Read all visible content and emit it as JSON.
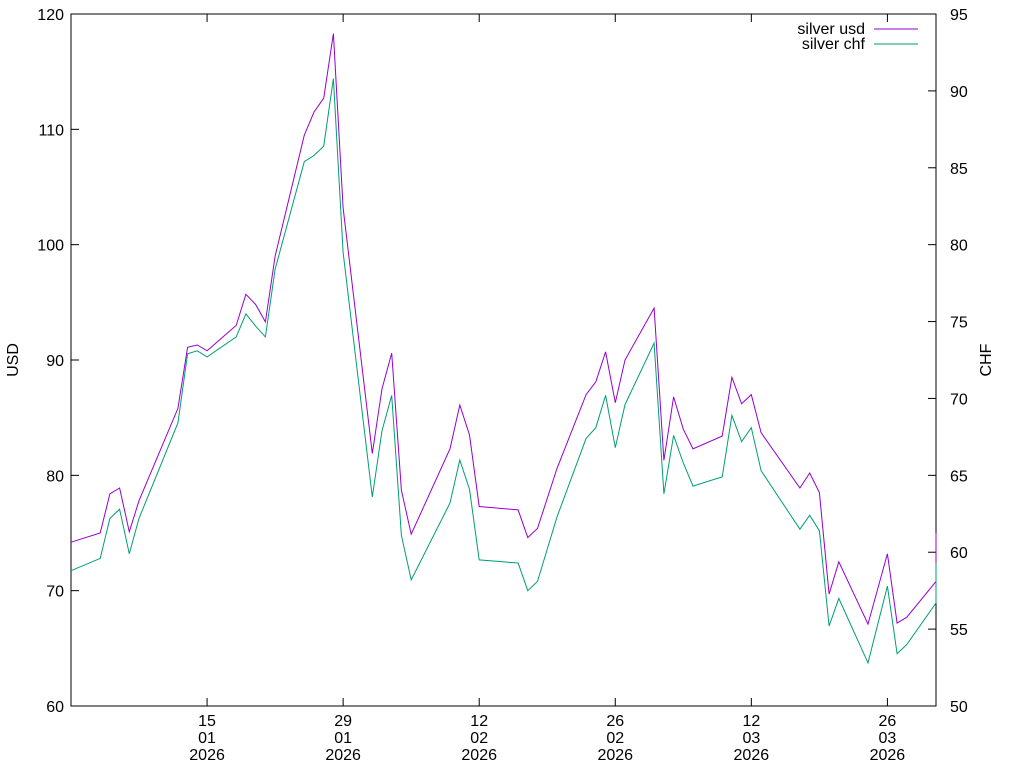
{
  "chart_data": {
    "type": "line",
    "title": "",
    "xlabel": "",
    "ylabel": "USD",
    "y2label": "CHF",
    "ylim": [
      60,
      120
    ],
    "y2lim": [
      50,
      95
    ],
    "xlim": [
      "2026-01-01",
      "2026-03-31"
    ],
    "yticks": [
      60,
      70,
      80,
      90,
      100,
      110,
      120
    ],
    "y2ticks": [
      50,
      55,
      60,
      65,
      70,
      75,
      80,
      85,
      90,
      95
    ],
    "xticks": [
      {
        "date": "2026-01-15",
        "lines": [
          "15",
          "01",
          "2026"
        ]
      },
      {
        "date": "2026-01-29",
        "lines": [
          "29",
          "01",
          "2026"
        ]
      },
      {
        "date": "2026-02-12",
        "lines": [
          "12",
          "02",
          "2026"
        ]
      },
      {
        "date": "2026-02-26",
        "lines": [
          "26",
          "02",
          "2026"
        ]
      },
      {
        "date": "2026-03-12",
        "lines": [
          "12",
          "03",
          "2026"
        ]
      },
      {
        "date": "2026-03-26",
        "lines": [
          "26",
          "03",
          "2026"
        ]
      }
    ],
    "grid": false,
    "legend": "top-right",
    "series": [
      {
        "name": "silver usd",
        "axis": "left",
        "color": "#9400d3",
        "points": [
          [
            "2026-01-01",
            74.2
          ],
          [
            "2026-01-04",
            75.0
          ],
          [
            "2026-01-05",
            78.4
          ],
          [
            "2026-01-06",
            78.9
          ],
          [
            "2026-01-07",
            75.1
          ],
          [
            "2026-01-08",
            77.8
          ],
          [
            "2026-01-12",
            85.8
          ],
          [
            "2026-01-13",
            91.1
          ],
          [
            "2026-01-14",
            91.3
          ],
          [
            "2026-01-15",
            90.8
          ],
          [
            "2026-01-18",
            93.0
          ],
          [
            "2026-01-19",
            95.7
          ],
          [
            "2026-01-20",
            94.8
          ],
          [
            "2026-01-21",
            93.3
          ],
          [
            "2026-01-22",
            99.0
          ],
          [
            "2026-01-25",
            109.5
          ],
          [
            "2026-01-26",
            111.5
          ],
          [
            "2026-01-27",
            112.7
          ],
          [
            "2026-01-28",
            118.3
          ],
          [
            "2026-01-29",
            103.2
          ],
          [
            "2026-02-01",
            81.9
          ],
          [
            "2026-02-02",
            87.5
          ],
          [
            "2026-02-03",
            90.6
          ],
          [
            "2026-02-04",
            78.7
          ],
          [
            "2026-02-05",
            74.9
          ],
          [
            "2026-02-09",
            82.3
          ],
          [
            "2026-02-10",
            86.1
          ],
          [
            "2026-02-11",
            83.5
          ],
          [
            "2026-02-12",
            77.3
          ],
          [
            "2026-02-16",
            77.0
          ],
          [
            "2026-02-17",
            74.6
          ],
          [
            "2026-02-18",
            75.4
          ],
          [
            "2026-02-20",
            80.6
          ],
          [
            "2026-02-23",
            87.0
          ],
          [
            "2026-02-24",
            88.1
          ],
          [
            "2026-02-25",
            90.7
          ],
          [
            "2026-02-26",
            86.3
          ],
          [
            "2026-02-27",
            90.0
          ],
          [
            "2026-03-02",
            94.5
          ],
          [
            "2026-03-03",
            81.3
          ],
          [
            "2026-03-04",
            86.8
          ],
          [
            "2026-03-05",
            84.0
          ],
          [
            "2026-03-06",
            82.3
          ],
          [
            "2026-03-09",
            83.4
          ],
          [
            "2026-03-10",
            88.5
          ],
          [
            "2026-03-11",
            86.2
          ],
          [
            "2026-03-12",
            87.0
          ],
          [
            "2026-03-13",
            83.7
          ],
          [
            "2026-03-17",
            78.9
          ],
          [
            "2026-03-18",
            80.2
          ],
          [
            "2026-03-19",
            78.5
          ],
          [
            "2026-03-20",
            69.7
          ],
          [
            "2026-03-21",
            72.5
          ],
          [
            "2026-03-24",
            67.1
          ],
          [
            "2026-03-26",
            73.2
          ],
          [
            "2026-03-27",
            67.2
          ],
          [
            "2026-03-28",
            67.7
          ],
          [
            "2026-03-31",
            70.8
          ],
          [
            "2026-04-01",
            72.7
          ],
          [
            "2026-04-02",
            75.0
          ],
          [
            "2026-04-03",
            70.3
          ]
        ]
      },
      {
        "name": "silver chf",
        "axis": "right",
        "color": "#009e73",
        "points": [
          [
            "2026-01-01",
            58.8
          ],
          [
            "2026-01-04",
            59.6
          ],
          [
            "2026-01-05",
            62.2
          ],
          [
            "2026-01-06",
            62.8
          ],
          [
            "2026-01-07",
            59.9
          ],
          [
            "2026-01-08",
            62.2
          ],
          [
            "2026-01-12",
            68.4
          ],
          [
            "2026-01-13",
            72.9
          ],
          [
            "2026-01-14",
            73.1
          ],
          [
            "2026-01-15",
            72.7
          ],
          [
            "2026-01-18",
            74.0
          ],
          [
            "2026-01-19",
            75.5
          ],
          [
            "2026-01-20",
            74.7
          ],
          [
            "2026-01-21",
            74.0
          ],
          [
            "2026-01-22",
            78.4
          ],
          [
            "2026-01-25",
            85.4
          ],
          [
            "2026-01-26",
            85.8
          ],
          [
            "2026-01-27",
            86.4
          ],
          [
            "2026-01-28",
            90.8
          ],
          [
            "2026-01-29",
            79.5
          ],
          [
            "2026-02-01",
            63.6
          ],
          [
            "2026-02-02",
            67.9
          ],
          [
            "2026-02-03",
            70.2
          ],
          [
            "2026-02-04",
            61.1
          ],
          [
            "2026-02-05",
            58.2
          ],
          [
            "2026-02-09",
            63.2
          ],
          [
            "2026-02-10",
            66.0
          ],
          [
            "2026-02-11",
            64.1
          ],
          [
            "2026-02-12",
            59.5
          ],
          [
            "2026-02-16",
            59.3
          ],
          [
            "2026-02-17",
            57.5
          ],
          [
            "2026-02-18",
            58.1
          ],
          [
            "2026-02-20",
            62.3
          ],
          [
            "2026-02-23",
            67.4
          ],
          [
            "2026-02-24",
            68.1
          ],
          [
            "2026-02-25",
            70.2
          ],
          [
            "2026-02-26",
            66.8
          ],
          [
            "2026-02-27",
            69.6
          ],
          [
            "2026-03-02",
            73.6
          ],
          [
            "2026-03-03",
            63.8
          ],
          [
            "2026-03-04",
            67.6
          ],
          [
            "2026-03-05",
            65.8
          ],
          [
            "2026-03-06",
            64.3
          ],
          [
            "2026-03-09",
            64.9
          ],
          [
            "2026-03-10",
            68.9
          ],
          [
            "2026-03-11",
            67.2
          ],
          [
            "2026-03-12",
            68.1
          ],
          [
            "2026-03-13",
            65.3
          ],
          [
            "2026-03-17",
            61.5
          ],
          [
            "2026-03-18",
            62.4
          ],
          [
            "2026-03-19",
            61.4
          ],
          [
            "2026-03-20",
            55.2
          ],
          [
            "2026-03-21",
            57.0
          ],
          [
            "2026-03-24",
            52.8
          ],
          [
            "2026-03-26",
            57.8
          ],
          [
            "2026-03-27",
            53.4
          ],
          [
            "2026-03-28",
            54.0
          ],
          [
            "2026-03-31",
            56.7
          ],
          [
            "2026-04-01",
            58.3
          ],
          [
            "2026-04-02",
            59.3
          ],
          [
            "2026-04-03",
            56.9
          ]
        ]
      }
    ]
  }
}
